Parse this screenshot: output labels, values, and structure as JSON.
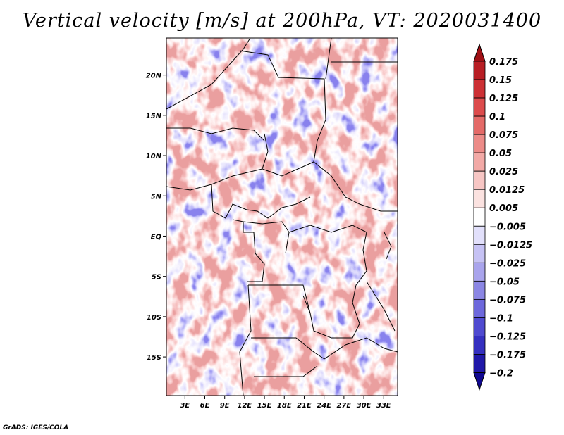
{
  "chart_data": {
    "type": "heatmap",
    "title": "Vertical velocity [m/s] at 200hPa, VT: 2020031400",
    "variable": "Vertical velocity",
    "units": "m/s",
    "level": "200hPa",
    "valid_time": "2020031400",
    "x_tick_labels": [
      "3E",
      "6E",
      "9E",
      "12E",
      "15E",
      "18E",
      "21E",
      "24E",
      "27E",
      "30E",
      "33E"
    ],
    "x_tick_values": [
      3,
      6,
      9,
      12,
      15,
      18,
      21,
      24,
      27,
      30,
      33
    ],
    "y_tick_labels": [
      "20N",
      "15N",
      "10N",
      "5N",
      "EQ",
      "5S",
      "10S",
      "15S"
    ],
    "y_tick_values": [
      20,
      15,
      10,
      5,
      0,
      -5,
      -10,
      -15
    ],
    "xlim": [
      0.2,
      35.1
    ],
    "ylim": [
      -19.8,
      24.6
    ],
    "colorbar_levels": [
      0.175,
      0.15,
      0.125,
      0.1,
      0.075,
      0.05,
      0.025,
      0.0125,
      0.005,
      -0.005,
      -0.0125,
      -0.025,
      -0.05,
      -0.075,
      -0.1,
      -0.125,
      -0.175,
      -0.2
    ],
    "colorbar_labels": [
      "0.175",
      "0.15",
      "0.125",
      "0.1",
      "0.075",
      "0.05",
      "0.025",
      "0.0125",
      "0.005",
      "−0.005",
      "−0.0125",
      "−0.025",
      "−0.05",
      "−0.075",
      "−0.1",
      "−0.125",
      "−0.175",
      "−0.2"
    ],
    "colorbar_colors": [
      "#a01015",
      "#b81e24",
      "#cc3034",
      "#dc4b4c",
      "#e46a68",
      "#ec8b88",
      "#f2a9a6",
      "#f7c6c4",
      "#fbe2e0",
      "#ffffff",
      "#e2e0fb",
      "#c6c2f4",
      "#a9a4ec",
      "#8b86e4",
      "#6d68dc",
      "#4f4ad0",
      "#3530c0",
      "#2018a8",
      "#100890"
    ]
  },
  "footer": "GrADS: IGES/COLA"
}
